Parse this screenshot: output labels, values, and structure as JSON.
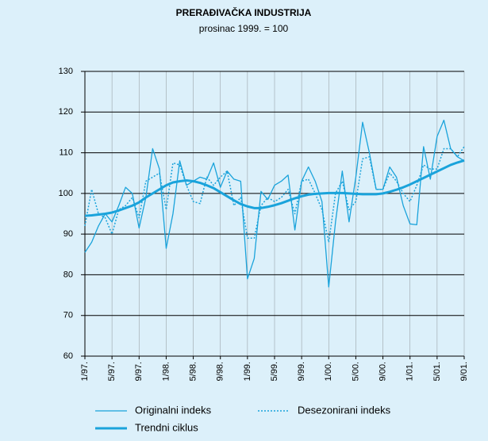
{
  "chart_data": {
    "type": "line",
    "title": "PRERAĐIVAČKA INDUSTRIJA",
    "subtitle": "prosinac 1999. = 100",
    "categories": [
      "1/97.",
      null,
      null,
      null,
      "5/97.",
      null,
      null,
      null,
      "9/97.",
      null,
      null,
      null,
      "1/98.",
      null,
      null,
      null,
      "5/98.",
      null,
      null,
      null,
      "9/98.",
      null,
      null,
      null,
      "1/99.",
      null,
      null,
      null,
      "5/99.",
      null,
      null,
      null,
      "9/99.",
      null,
      null,
      null,
      "1/00.",
      null,
      null,
      null,
      "5/00.",
      null,
      null,
      null,
      "9/00.",
      null,
      null,
      null,
      "1/01.",
      null,
      null,
      null,
      "5/01.",
      null,
      null,
      null,
      "9/01."
    ],
    "series": [
      {
        "name": "Originalni indeks",
        "color": "#1aa3db",
        "width": 1.3,
        "dash": "none",
        "values": [
          85.5,
          88,
          92,
          95,
          93,
          97,
          101.5,
          100,
          91.5,
          99,
          111,
          106,
          86.5,
          95,
          108,
          102,
          103,
          104,
          103.5,
          107.5,
          101.5,
          105.5,
          103.5,
          103,
          79,
          84,
          100.5,
          98.5,
          102,
          103,
          104.5,
          91,
          103,
          106.5,
          103,
          98,
          77,
          93,
          105.5,
          93,
          104,
          117.5,
          110,
          101,
          101,
          106.5,
          104,
          97,
          92.5,
          92.3,
          111.5,
          103.5,
          114,
          118,
          111,
          109,
          108
        ]
      },
      {
        "name": "Desezonirani indeks",
        "color": "#1aa3db",
        "width": 1.5,
        "dash": "2 2",
        "values": [
          92,
          101,
          95,
          94,
          90,
          96,
          97,
          99,
          94,
          103,
          104,
          105,
          96,
          107.5,
          107,
          102,
          98,
          97.5,
          104,
          102,
          104,
          105.5,
          97,
          99,
          89,
          89,
          97,
          99,
          98,
          99,
          101,
          95,
          103,
          103.5,
          100,
          96,
          88,
          100,
          103,
          96,
          98,
          108.5,
          109,
          101,
          101,
          105,
          103,
          100,
          98,
          102,
          107,
          106,
          106,
          111,
          111,
          109,
          111.5
        ]
      },
      {
        "name": "Trendni ciklus",
        "color": "#1aa3db",
        "width": 3,
        "dash": "none",
        "values": [
          94.5,
          94.6,
          94.8,
          95,
          95.3,
          95.8,
          96.4,
          97,
          97.8,
          99,
          100,
          101,
          102,
          102.7,
          103,
          103.2,
          103,
          102.6,
          102,
          101.3,
          100.3,
          99.3,
          98.3,
          97.4,
          96.8,
          96.4,
          96.4,
          96.7,
          97.1,
          97.6,
          98.2,
          98.8,
          99.3,
          99.7,
          99.9,
          100,
          100.1,
          100.1,
          100.1,
          100,
          99.9,
          99.8,
          99.8,
          99.8,
          100,
          100.4,
          100.9,
          101.5,
          102.2,
          103,
          103.8,
          104.6,
          105.4,
          106.2,
          107,
          107.6,
          108.1
        ]
      }
    ],
    "ylim": [
      60,
      130
    ],
    "yticks": [
      60,
      70,
      80,
      90,
      100,
      110,
      120,
      130
    ],
    "grid": true
  }
}
